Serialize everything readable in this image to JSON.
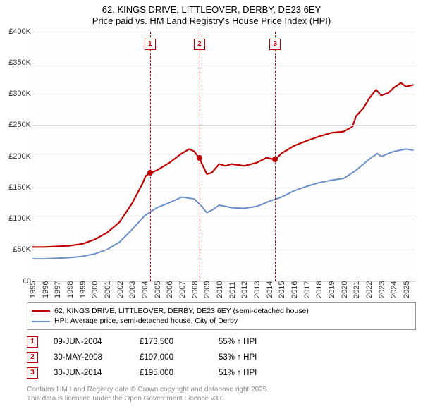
{
  "title": {
    "line1": "62, KINGS DRIVE, LITTLEOVER, DERBY, DE23 6EY",
    "line2": "Price paid vs. HM Land Registry's House Price Index (HPI)",
    "fontsize": 13
  },
  "chart": {
    "type": "line",
    "background_color": "#ffffff",
    "grid_color": "#d9d9d9",
    "x": {
      "min": 1995,
      "max": 2025.8,
      "ticks": [
        1995,
        1996,
        1997,
        1998,
        1999,
        2000,
        2001,
        2002,
        2003,
        2004,
        2005,
        2006,
        2007,
        2008,
        2009,
        2010,
        2011,
        2012,
        2013,
        2014,
        2015,
        2016,
        2017,
        2018,
        2019,
        2020,
        2021,
        2022,
        2023,
        2024,
        2025
      ],
      "label_fontsize": 11
    },
    "y": {
      "min": 0,
      "max": 400000,
      "ticks": [
        0,
        50000,
        100000,
        150000,
        200000,
        250000,
        300000,
        350000,
        400000
      ],
      "tick_labels": [
        "£0",
        "£50K",
        "£100K",
        "£150K",
        "£200K",
        "£250K",
        "£300K",
        "£350K",
        "£400K"
      ],
      "label_fontsize": 11
    },
    "series": [
      {
        "name": "price_paid",
        "color": "#c00000",
        "width": 2.2,
        "points": [
          [
            1995,
            55000
          ],
          [
            1996,
            55000
          ],
          [
            1997,
            56000
          ],
          [
            1998,
            57000
          ],
          [
            1999,
            60000
          ],
          [
            2000,
            67000
          ],
          [
            2001,
            78000
          ],
          [
            2002,
            95000
          ],
          [
            2003,
            125000
          ],
          [
            2003.8,
            155000
          ],
          [
            2004.1,
            169000
          ],
          [
            2004.44,
            173500
          ],
          [
            2005,
            178000
          ],
          [
            2006,
            190000
          ],
          [
            2007,
            205000
          ],
          [
            2007.6,
            212000
          ],
          [
            2008,
            208000
          ],
          [
            2008.41,
            197000
          ],
          [
            2009,
            172000
          ],
          [
            2009.4,
            174000
          ],
          [
            2010,
            188000
          ],
          [
            2010.5,
            185000
          ],
          [
            2011,
            188000
          ],
          [
            2012,
            185000
          ],
          [
            2013,
            190000
          ],
          [
            2013.8,
            198000
          ],
          [
            2014.49,
            195000
          ],
          [
            2015,
            205000
          ],
          [
            2016,
            217000
          ],
          [
            2017,
            225000
          ],
          [
            2018,
            232000
          ],
          [
            2019,
            238000
          ],
          [
            2020,
            240000
          ],
          [
            2020.7,
            248000
          ],
          [
            2021,
            265000
          ],
          [
            2021.6,
            278000
          ],
          [
            2022,
            292000
          ],
          [
            2022.6,
            307000
          ],
          [
            2023,
            298000
          ],
          [
            2023.6,
            302000
          ],
          [
            2024,
            310000
          ],
          [
            2024.6,
            318000
          ],
          [
            2025,
            312000
          ],
          [
            2025.6,
            315000
          ]
        ]
      },
      {
        "name": "hpi",
        "color": "#6b8fc9",
        "width": 2.0,
        "points": [
          [
            1995,
            36000
          ],
          [
            1996,
            36000
          ],
          [
            1997,
            37000
          ],
          [
            1998,
            38000
          ],
          [
            1999,
            40000
          ],
          [
            2000,
            44000
          ],
          [
            2001,
            51000
          ],
          [
            2002,
            63000
          ],
          [
            2003,
            83000
          ],
          [
            2004,
            105000
          ],
          [
            2005,
            118000
          ],
          [
            2006,
            126000
          ],
          [
            2007,
            135000
          ],
          [
            2008,
            132000
          ],
          [
            2008.6,
            120000
          ],
          [
            2009,
            110000
          ],
          [
            2009.5,
            115000
          ],
          [
            2010,
            122000
          ],
          [
            2011,
            118000
          ],
          [
            2012,
            117000
          ],
          [
            2013,
            120000
          ],
          [
            2014,
            128000
          ],
          [
            2015,
            135000
          ],
          [
            2016,
            145000
          ],
          [
            2017,
            152000
          ],
          [
            2018,
            158000
          ],
          [
            2019,
            162000
          ],
          [
            2020,
            165000
          ],
          [
            2021,
            178000
          ],
          [
            2022,
            195000
          ],
          [
            2022.7,
            205000
          ],
          [
            2023,
            200000
          ],
          [
            2024,
            208000
          ],
          [
            2025,
            212000
          ],
          [
            2025.6,
            210000
          ]
        ]
      }
    ],
    "event_markers": [
      {
        "idx": "1",
        "x": 2004.44,
        "y": 173500,
        "color": "#c00000"
      },
      {
        "idx": "2",
        "x": 2008.41,
        "y": 197000,
        "color": "#c00000"
      },
      {
        "idx": "3",
        "x": 2014.49,
        "y": 195000,
        "color": "#c00000"
      }
    ],
    "marker_box_y_offset": 0.03
  },
  "legend": {
    "items": [
      {
        "color": "#c00000",
        "label": "62, KINGS DRIVE, LITTLEOVER, DERBY, DE23 6EY (semi-detached house)"
      },
      {
        "color": "#6b8fc9",
        "label": "HPI: Average price, semi-detached house, City of Derby"
      }
    ]
  },
  "events": [
    {
      "idx": "1",
      "date": "09-JUN-2004",
      "price": "£173,500",
      "delta": "55% ↑ HPI"
    },
    {
      "idx": "2",
      "date": "30-MAY-2008",
      "price": "£197,000",
      "delta": "53% ↑ HPI"
    },
    {
      "idx": "3",
      "date": "30-JUN-2014",
      "price": "£195,000",
      "delta": "51% ↑ HPI"
    }
  ],
  "footnote": {
    "line1": "Contains HM Land Registry data © Crown copyright and database right 2025.",
    "line2": "This data is licensed under the Open Government Licence v3.0."
  }
}
